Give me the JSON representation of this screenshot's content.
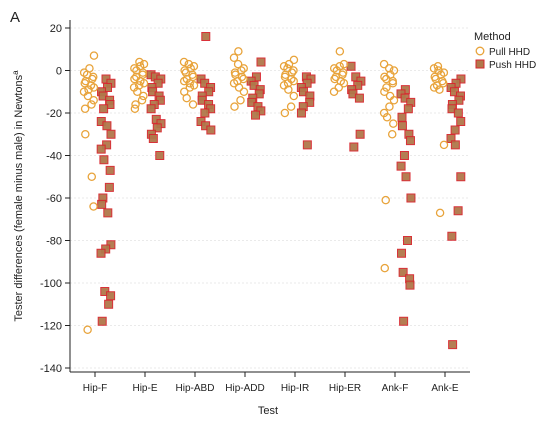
{
  "chart_data": {
    "type": "scatter",
    "panel_label": "A",
    "xlabel": "Test",
    "ylabel": "Tester differences (female minus male) in Newtons",
    "ylabel_superscript": "a",
    "ylim": [
      -140,
      20
    ],
    "yticks": [
      20,
      0,
      -20,
      -40,
      -60,
      -80,
      -100,
      -120,
      -140
    ],
    "categories": [
      "Hip-F",
      "Hip-E",
      "Hip-ABD",
      "Hip-ADD",
      "Hip-IR",
      "Hip-ER",
      "Ank-F",
      "Ank-E"
    ],
    "legend": {
      "title": "Method",
      "placement": "top-right"
    },
    "series": [
      {
        "name": "Pull HHD",
        "marker": "open-circle",
        "color": "#E8A33A",
        "values": [
          [
            7,
            1,
            -1,
            -2,
            -3,
            -4,
            -5,
            -6,
            -7,
            -8,
            -9,
            -10,
            -12,
            -14,
            -16,
            -18,
            -30,
            -50,
            -64,
            -122
          ],
          [
            4,
            3,
            2,
            1,
            0,
            -1,
            -2,
            -3,
            -4,
            -5,
            -6,
            -7,
            -8,
            -10,
            -12,
            -14,
            -16,
            -18
          ],
          [
            4,
            3,
            2,
            1,
            0,
            -1,
            -2,
            -3,
            -4,
            -5,
            -6,
            -7,
            -8,
            -10,
            -13,
            -16
          ],
          [
            9,
            6,
            3,
            1,
            0,
            -1,
            -2,
            -3,
            -4,
            -5,
            -6,
            -8,
            -10,
            -14,
            -17
          ],
          [
            5,
            3,
            2,
            1,
            0,
            -1,
            -2,
            -3,
            -4,
            -5,
            -6,
            -7,
            -9,
            -12,
            -17,
            -20
          ],
          [
            9,
            3,
            2,
            1,
            0,
            -1,
            -2,
            -3,
            -4,
            -5,
            -6,
            -8,
            -10
          ],
          [
            3,
            1,
            0,
            -2,
            -3,
            -4,
            -5,
            -6,
            -8,
            -10,
            -12,
            -14,
            -17,
            -20,
            -22,
            -25,
            -30,
            -61,
            -93
          ],
          [
            2,
            1,
            0,
            -1,
            -2,
            -3,
            -4,
            -5,
            -6,
            -7,
            -8,
            -9,
            -35,
            -67
          ]
        ]
      },
      {
        "name": "Push HHD",
        "marker": "filled-square",
        "color": "#B0784A",
        "values": [
          [
            -4,
            -6,
            -8,
            -10,
            -12,
            -14,
            -16,
            -18,
            -24,
            -26,
            -30,
            -35,
            -37,
            -42,
            -47,
            -55,
            -60,
            -63,
            -67,
            -82,
            -84,
            -86,
            -104,
            -106,
            -110,
            -118
          ],
          [
            -2,
            -3,
            -4,
            -6,
            -8,
            -10,
            -12,
            -14,
            -16,
            -18,
            -23,
            -25,
            -27,
            -30,
            -32,
            -40
          ],
          [
            16,
            -4,
            -6,
            -8,
            -10,
            -12,
            -14,
            -16,
            -18,
            -20,
            -24,
            -26,
            -28
          ],
          [
            4,
            -3,
            -5,
            -7,
            -9,
            -11,
            -13,
            -15,
            -17,
            -19,
            -21
          ],
          [
            -3,
            -4,
            -6,
            -8,
            -10,
            -12,
            -15,
            -17,
            -20,
            -35
          ],
          [
            2,
            -3,
            -5,
            -7,
            -9,
            -11,
            -13,
            -30,
            -36
          ],
          [
            -9,
            -11,
            -13,
            -15,
            -18,
            -22,
            -26,
            -30,
            -33,
            -40,
            -45,
            -50,
            -60,
            -80,
            -86,
            -95,
            -98,
            -101,
            -118
          ],
          [
            -4,
            -6,
            -8,
            -10,
            -12,
            -14,
            -16,
            -18,
            -20,
            -24,
            -28,
            -32,
            -35,
            -50,
            -66,
            -78,
            -129
          ]
        ]
      }
    ]
  }
}
